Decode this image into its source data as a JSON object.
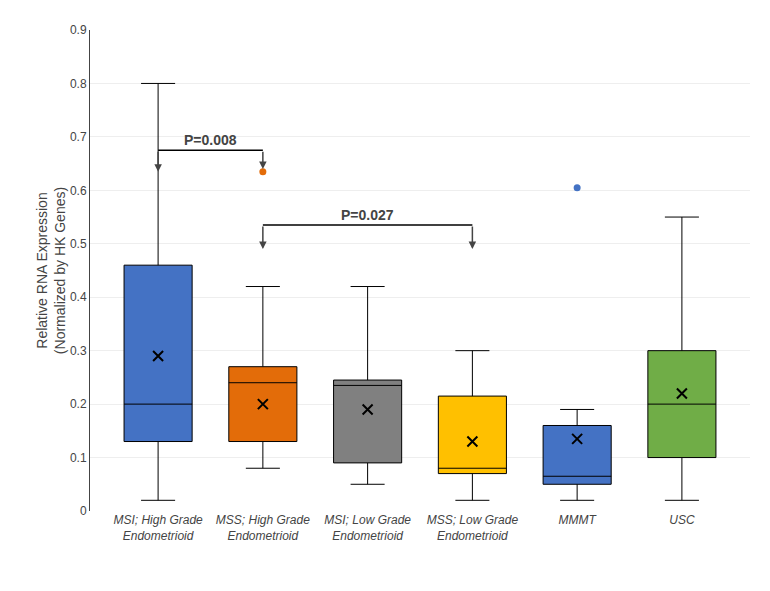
{
  "chart_data": {
    "type": "box",
    "categories": [
      "MSI; High Grade\nEndometrioid",
      "MSS; High Grade\nEndometrioid",
      "MSI; Low Grade\nEndometrioid",
      "MSS; Low Grade\nEndometrioid",
      "MMMT",
      "USC"
    ],
    "boxes": [
      {
        "whislo": 0.02,
        "q1": 0.13,
        "med": 0.2,
        "q3": 0.46,
        "whishi": 0.8,
        "mean": 0.29,
        "fliers": []
      },
      {
        "whislo": 0.08,
        "q1": 0.13,
        "med": 0.24,
        "q3": 0.27,
        "whishi": 0.42,
        "mean": 0.2,
        "fliers": [
          0.635
        ]
      },
      {
        "whislo": 0.05,
        "q1": 0.09,
        "med": 0.235,
        "q3": 0.245,
        "whishi": 0.42,
        "mean": 0.19,
        "fliers": []
      },
      {
        "whislo": 0.02,
        "q1": 0.07,
        "med": 0.08,
        "q3": 0.215,
        "whishi": 0.3,
        "mean": 0.13,
        "fliers": []
      },
      {
        "whislo": 0.02,
        "q1": 0.05,
        "med": 0.065,
        "q3": 0.16,
        "whishi": 0.19,
        "mean": 0.135,
        "fliers": [
          0.605
        ]
      },
      {
        "whislo": 0.02,
        "q1": 0.1,
        "med": 0.2,
        "q3": 0.3,
        "whishi": 0.55,
        "mean": 0.22,
        "fliers": []
      }
    ],
    "colors": [
      "#4472C4",
      "#E36C09",
      "#808080",
      "#FFC000",
      "#4472C4",
      "#70AD47"
    ],
    "marker": "x",
    "ylabel": "Relative RNA Expression\n(Normalized by HK Genes)",
    "ylim": [
      0,
      0.9
    ],
    "yticks": [
      0,
      0.1,
      0.2,
      0.3,
      0.4,
      0.5,
      0.6,
      0.7,
      0.8,
      0.9
    ],
    "grid": true,
    "annotations": [
      {
        "text": "P=0.008",
        "from": "MSI; High Grade\nEndometrioid",
        "to": "MSS; High Grade\nEndometrioid",
        "y": 0.675,
        "arrow_ends": [
          0.635,
          0.64
        ]
      },
      {
        "text": "P=0.027",
        "from": "MSS; High Grade\nEndometrioid",
        "to": "MSS; Low Grade\nEndometrioid",
        "y": 0.535,
        "arrow_ends": [
          0.49,
          0.49
        ]
      }
    ]
  }
}
